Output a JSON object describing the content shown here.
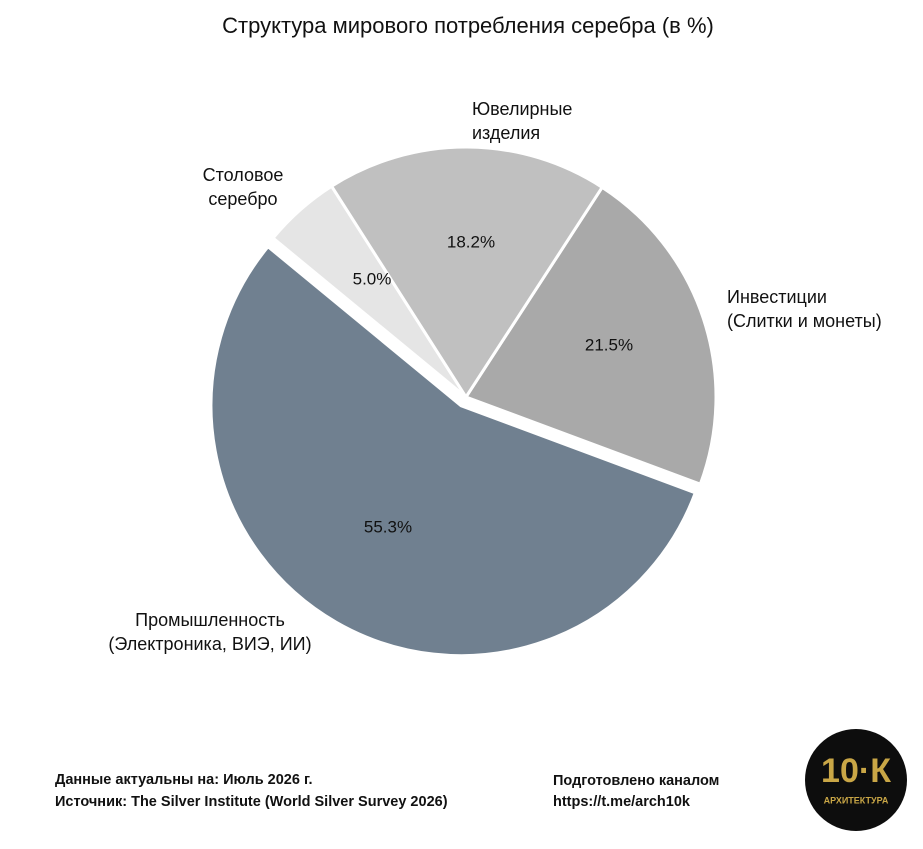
{
  "chart_data": {
    "type": "pie",
    "title": "Структура мирового потребления серебра (в %)",
    "categories": [
      [
        "Инвестиции",
        "(Слитки и монеты)"
      ],
      [
        "Промышленность",
        "(Электроника, ВИЭ, ИИ)"
      ],
      [
        "Столовое",
        "серебро"
      ],
      [
        "Ювелирные",
        "изделия"
      ]
    ],
    "values": [
      21.5,
      55.3,
      5.0,
      18.2
    ],
    "value_labels": [
      "21.5%",
      "55.3%",
      "5.0%",
      "18.2%"
    ],
    "colors": [
      "#a9a9a9",
      "#708090",
      "#e5e5e5",
      "#c0c0c0"
    ]
  },
  "footer": {
    "left": [
      "Данные актуальны на: Июль 2026 г.",
      "Источник: The Silver Institute (World Silver Survey 2026)"
    ],
    "right": [
      "Подготовлено каналом",
      "https://t.me/arch10k"
    ],
    "logo": {
      "main": "10·К",
      "sub": "АРХИТЕКТУРА"
    }
  }
}
